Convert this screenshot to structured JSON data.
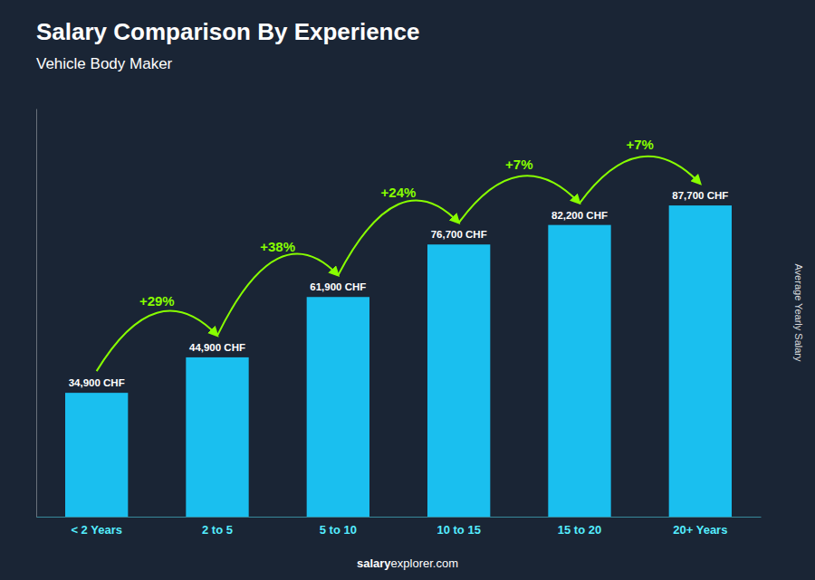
{
  "chart_data": {
    "type": "bar",
    "title": "Salary Comparison By Experience",
    "subtitle": "Vehicle Body Maker",
    "y_label": "Average Yearly Salary",
    "categories": [
      "< 2 Years",
      "2 to 5",
      "5 to 10",
      "10 to 15",
      "15 to 20",
      "20+ Years"
    ],
    "values": [
      34900,
      44900,
      61900,
      76700,
      82200,
      87700
    ],
    "value_labels": [
      "34,900 CHF",
      "44,900 CHF",
      "61,900 CHF",
      "76,700 CHF",
      "82,200 CHF",
      "87,700 CHF"
    ],
    "data_labels": true,
    "pct_changes": [
      "+29%",
      "+38%",
      "+24%",
      "+7%",
      "+7%"
    ],
    "annotations": [
      "salary",
      "explorer.com"
    ],
    "color": "#1ABFEF",
    "ylim": [
      0,
      115000
    ],
    "tick_labels": "x",
    "grid": false
  }
}
